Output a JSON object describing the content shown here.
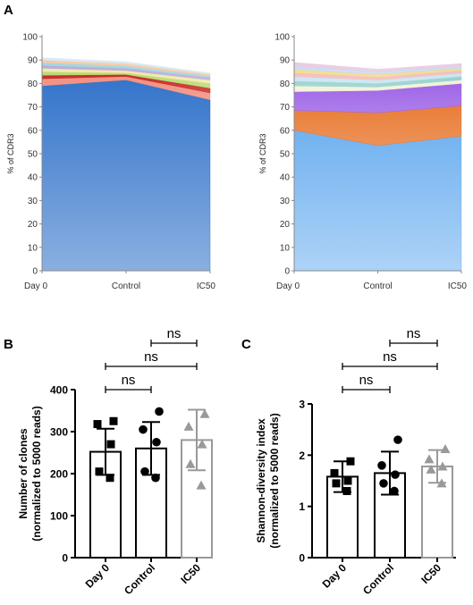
{
  "figure": {
    "panel_labels": [
      "A",
      "B",
      "C"
    ]
  },
  "chart_data": [
    {
      "id": "A-left",
      "type": "area",
      "stacked": true,
      "title": "",
      "xlabel": "",
      "ylabel": "% of CDR3",
      "categories": [
        "Day 0",
        "Control",
        "IC50"
      ],
      "ylim": [
        0,
        100
      ],
      "yticks": [
        0,
        10,
        20,
        30,
        40,
        50,
        60,
        70,
        80,
        90,
        100
      ],
      "grid": false,
      "series": [
        {
          "values": [
            79,
            81.5,
            73
          ],
          "color": "#2a6ec8"
        },
        {
          "values": [
            3,
            1.5,
            3
          ],
          "color": "#f08a7a"
        },
        {
          "values": [
            1.5,
            0.8,
            2
          ],
          "color": "#c2201f"
        },
        {
          "values": [
            1.5,
            0.7,
            2
          ],
          "color": "#b6d96a"
        },
        {
          "values": [
            1.5,
            1,
            1.5
          ],
          "color": "#f2e6a6"
        },
        {
          "values": [
            1.2,
            1,
            1
          ],
          "color": "#b9a7d9"
        },
        {
          "values": [
            1.2,
            1,
            0.8
          ],
          "color": "#9fd4df"
        },
        {
          "values": [
            1.1,
            1,
            0.7
          ],
          "color": "#f6c9a0"
        },
        {
          "values": [
            1,
            0.8,
            0.5
          ],
          "color": "#d6e8f4"
        }
      ]
    },
    {
      "id": "A-right",
      "type": "area",
      "stacked": true,
      "title": "",
      "xlabel": "",
      "ylabel": "% of CDR3",
      "categories": [
        "Day 0",
        "Control",
        "IC50"
      ],
      "ylim": [
        0,
        100
      ],
      "yticks": [
        0,
        10,
        20,
        30,
        40,
        50,
        60,
        70,
        80,
        90,
        100
      ],
      "grid": false,
      "series": [
        {
          "values": [
            60,
            53.5,
            57.5
          ],
          "color": "#6aaef0"
        },
        {
          "values": [
            8.5,
            14,
            13
          ],
          "color": "#e8772e"
        },
        {
          "values": [
            8,
            9.5,
            9.5
          ],
          "color": "#9a5ee6"
        },
        {
          "values": [
            2.5,
            1.5,
            1.5
          ],
          "color": "#f4f0d6"
        },
        {
          "values": [
            2,
            1.5,
            1.5
          ],
          "color": "#8fd0c9"
        },
        {
          "values": [
            2,
            1.5,
            1.5
          ],
          "color": "#c7e2f2"
        },
        {
          "values": [
            1.5,
            1.2,
            1
          ],
          "color": "#f5b8b8"
        },
        {
          "values": [
            1.5,
            1.2,
            1
          ],
          "color": "#f0d98a"
        },
        {
          "values": [
            1.5,
            1.2,
            1
          ],
          "color": "#c9d8f0"
        },
        {
          "values": [
            1.5,
            1,
            1
          ],
          "color": "#e8c8e0"
        }
      ]
    },
    {
      "id": "B",
      "type": "bar",
      "title": "",
      "xlabel": "",
      "ylabel": "Number of clones\n(normalized to 5000 reads)",
      "categories": [
        "Day 0",
        "Control",
        "IC50"
      ],
      "values": [
        252,
        260,
        280
      ],
      "error": [
        55,
        63,
        72
      ],
      "ylim": [
        0,
        400
      ],
      "yticks": [
        0,
        100,
        200,
        300,
        400
      ],
      "bar_colors": [
        "#000000",
        "#000000",
        "#999999"
      ],
      "points": [
        [
          325,
          318,
          270,
          205,
          190
        ],
        [
          348,
          305,
          275,
          205,
          190
        ],
        [
          342,
          312,
          270,
          223,
          172
        ]
      ],
      "markers": [
        "square",
        "circle",
        "triangle"
      ],
      "significance": [
        {
          "from": 0,
          "to": 1,
          "label": "ns"
        },
        {
          "from": 0,
          "to": 2,
          "label": "ns"
        },
        {
          "from": 1,
          "to": 2,
          "label": "ns"
        }
      ]
    },
    {
      "id": "C",
      "type": "bar",
      "title": "",
      "xlabel": "",
      "ylabel": "Shannon-diversity index\n(normalized to 5000 reads)",
      "categories": [
        "Day 0",
        "Control",
        "IC50"
      ],
      "values": [
        1.58,
        1.65,
        1.78
      ],
      "error": [
        0.3,
        0.42,
        0.32
      ],
      "ylim": [
        0,
        3
      ],
      "yticks": [
        0,
        1,
        2,
        3
      ],
      "bar_colors": [
        "#000000",
        "#000000",
        "#999999"
      ],
      "points": [
        [
          1.88,
          1.65,
          1.5,
          1.45,
          1.3
        ],
        [
          2.3,
          1.8,
          1.62,
          1.45,
          1.3
        ],
        [
          2.12,
          1.92,
          1.78,
          1.72,
          1.45
        ]
      ],
      "markers": [
        "square",
        "circle",
        "triangle"
      ],
      "significance": [
        {
          "from": 0,
          "to": 1,
          "label": "ns"
        },
        {
          "from": 0,
          "to": 2,
          "label": "ns"
        },
        {
          "from": 1,
          "to": 2,
          "label": "ns"
        }
      ]
    }
  ]
}
